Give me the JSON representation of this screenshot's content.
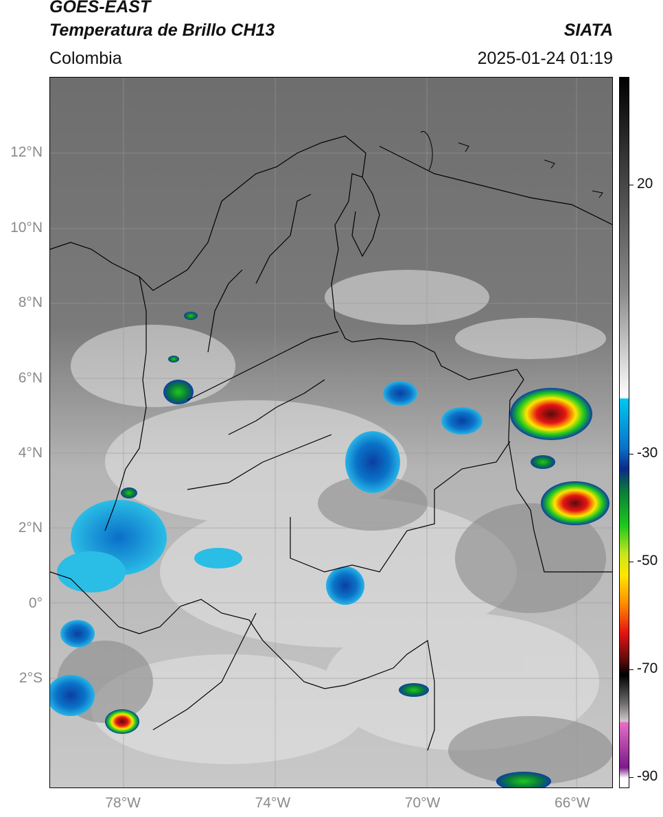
{
  "header": {
    "satellite": "GOES-EAST",
    "product": "Temperatura de Brillo CH13",
    "region": "Colombia",
    "agency": "SIATA",
    "datetime": "2025-01-24 01:19"
  },
  "map": {
    "lat_ticks": [
      {
        "label": "12°N",
        "value": 12
      },
      {
        "label": "10°N",
        "value": 10
      },
      {
        "label": "8°N",
        "value": 8
      },
      {
        "label": "6°N",
        "value": 6
      },
      {
        "label": "4°N",
        "value": 4
      },
      {
        "label": "2°N",
        "value": 2
      },
      {
        "label": "0°",
        "value": 0
      },
      {
        "label": "2°S",
        "value": -2
      }
    ],
    "lon_ticks": [
      {
        "label": "78°W",
        "value": -78
      },
      {
        "label": "74°W",
        "value": -74
      },
      {
        "label": "70°W",
        "value": -70
      },
      {
        "label": "66°W",
        "value": -66
      }
    ],
    "grid": true
  },
  "colorbar": {
    "ticks": [
      {
        "label": "20",
        "value": 20
      },
      {
        "label": "-30",
        "value": -30
      },
      {
        "label": "-50",
        "value": -50
      },
      {
        "label": "-70",
        "value": -70
      },
      {
        "label": "-90",
        "value": -90
      }
    ],
    "range": [
      -92,
      40
    ],
    "colors": {
      "white": "#ffffff",
      "cyan": "#00b4e6",
      "blue": "#0a3fa0",
      "green": "#1ec81e",
      "yellow": "#ffe600",
      "orange": "#ff8c00",
      "red": "#e61414",
      "darkred": "#5a0a0a",
      "black": "#000000",
      "pink": "#e66ec8",
      "purple": "#7a1a8a"
    }
  }
}
